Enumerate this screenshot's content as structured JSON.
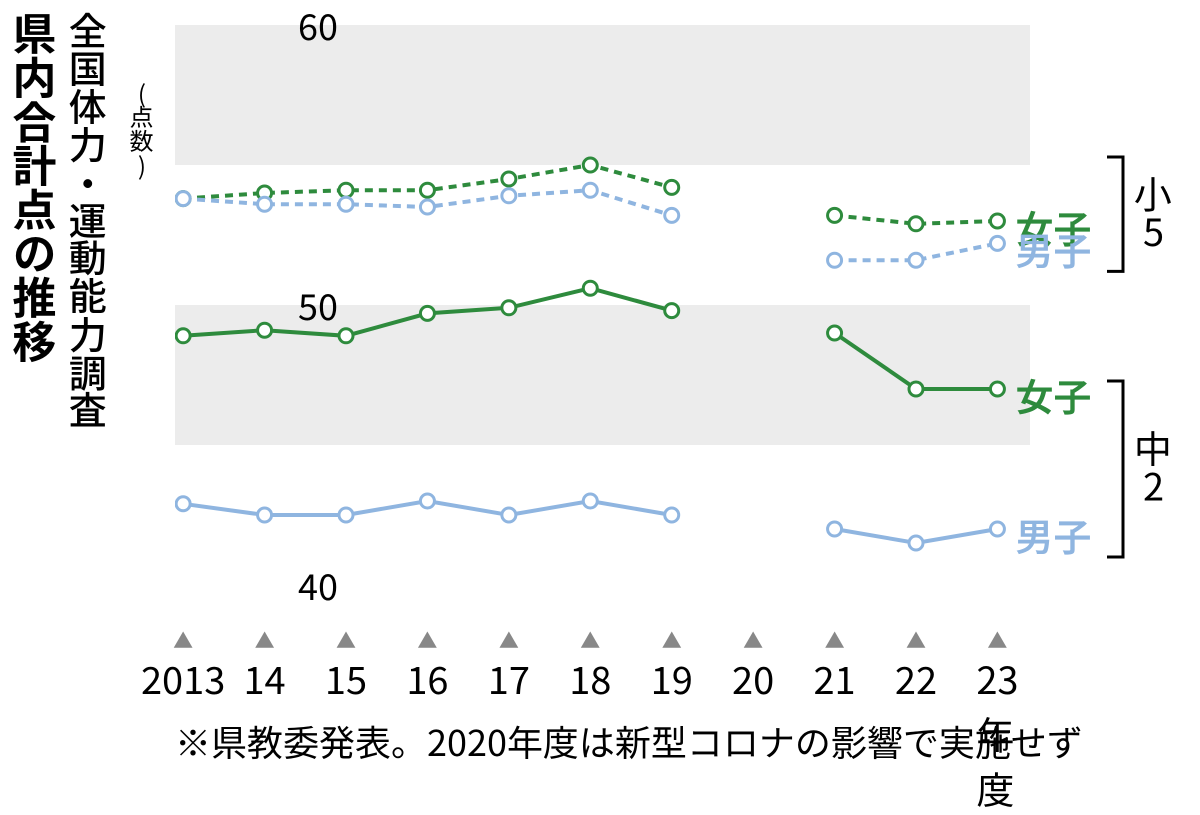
{
  "title_main": "県内合計点の推移",
  "title_sub": "全国体力・運動能力調査",
  "y_unit": "(点数)",
  "note": "※県教委発表。2020年度は新型コロナの影響で実施せず",
  "chart": {
    "type": "line",
    "background_color": "#ffffff",
    "band_color": "#ececec",
    "bands": [
      [
        55,
        60
      ],
      [
        45,
        50
      ]
    ],
    "ylim": [
      40,
      60
    ],
    "yticks": [
      40,
      50,
      60
    ],
    "years": [
      2013,
      2014,
      2015,
      2016,
      2017,
      2018,
      2019,
      2020,
      2021,
      2022,
      2023
    ],
    "xlabels": [
      "2013",
      "14",
      "15",
      "16",
      "17",
      "18",
      "19",
      "20",
      "21",
      "22",
      "23年度"
    ],
    "xmarker": "▲",
    "marker_radius": 7,
    "line_width": 4,
    "dash_pattern": "8,6",
    "series": [
      {
        "key": "e5_girl",
        "label": "女子",
        "group": "小5",
        "color": "#2e8b3d",
        "style": "dashed",
        "values": [
          53.8,
          54.0,
          54.1,
          54.1,
          54.5,
          55.0,
          54.2,
          null,
          53.2,
          52.9,
          53.0
        ]
      },
      {
        "key": "e5_boy",
        "label": "男子",
        "group": "小5",
        "color": "#8fb5e0",
        "style": "dashed",
        "values": [
          53.8,
          53.6,
          53.6,
          53.5,
          53.9,
          54.1,
          53.2,
          null,
          51.6,
          51.6,
          52.2
        ]
      },
      {
        "key": "j2_girl",
        "label": "女子",
        "group": "中2",
        "color": "#2e8b3d",
        "style": "solid",
        "values": [
          48.9,
          49.1,
          48.9,
          49.7,
          49.9,
          50.6,
          49.8,
          null,
          49.0,
          47.0,
          47.0
        ]
      },
      {
        "key": "j2_boy",
        "label": "男子",
        "group": "中2",
        "color": "#8fb5e0",
        "style": "solid",
        "values": [
          42.9,
          42.5,
          42.5,
          43.0,
          42.5,
          43.0,
          42.5,
          null,
          42.0,
          41.5,
          42.0
        ]
      }
    ],
    "groups": [
      {
        "name": "小5",
        "y_top": 52.2,
        "y_bot": 55.0
      },
      {
        "name": "中2",
        "y_top": 42.0,
        "y_bot": 47.0
      }
    ],
    "legend_label_fontsize": 38,
    "title_fontsize_main": 44,
    "title_fontsize_sub": 38
  }
}
